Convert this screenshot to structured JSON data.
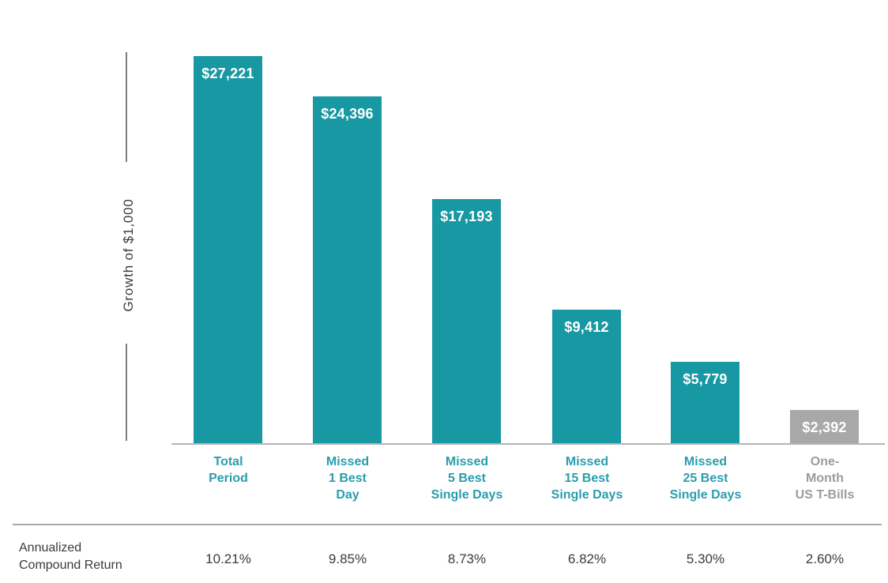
{
  "chart_data": {
    "type": "bar",
    "title": "",
    "ylabel": "Growth of $1,000",
    "xlabel": "",
    "categories": [
      "Total Period",
      "Missed 1 Best Day",
      "Missed 5 Best Single Days",
      "Missed 15 Best Single Days",
      "Missed 25 Best Single Days",
      "One-Month US T-Bills"
    ],
    "category_lines": [
      [
        "Total",
        "Period"
      ],
      [
        "Missed",
        "1 Best",
        "Day"
      ],
      [
        "Missed",
        "5 Best",
        "Single Days"
      ],
      [
        "Missed",
        "15 Best",
        "Single Days"
      ],
      [
        "Missed",
        "25 Best",
        "Single Days"
      ],
      [
        "One-",
        "Month",
        "US T-Bills"
      ]
    ],
    "values": [
      27221,
      24396,
      17193,
      9412,
      5779,
      2392
    ],
    "value_labels": [
      "$27,221",
      "$24,396",
      "$17,193",
      "$9,412",
      "$5,779",
      "$2,392"
    ],
    "bar_color_keys": [
      "teal",
      "teal",
      "teal",
      "teal",
      "teal",
      "gray"
    ],
    "annualized_row": {
      "label": "Annualized Compound Return",
      "label_lines": [
        "Annualized",
        "Compound Return"
      ],
      "values": [
        "10.21%",
        "9.85%",
        "8.73%",
        "6.82%",
        "5.30%",
        "2.60%"
      ]
    },
    "colors": {
      "bar_teal": "#1898A3",
      "bar_gray": "#A8A8A8",
      "label_teal": "#2A9DAC",
      "label_gray": "#9C9C9C",
      "text_dark": "#3B3B3B",
      "axis_line": "#7D7D7D",
      "baseline": "#B5B5B5",
      "separator": "#A9A9A9",
      "value_text": "#FFFFFF"
    },
    "ylim": [
      0,
      28000
    ],
    "grid": false,
    "legend": "none"
  }
}
